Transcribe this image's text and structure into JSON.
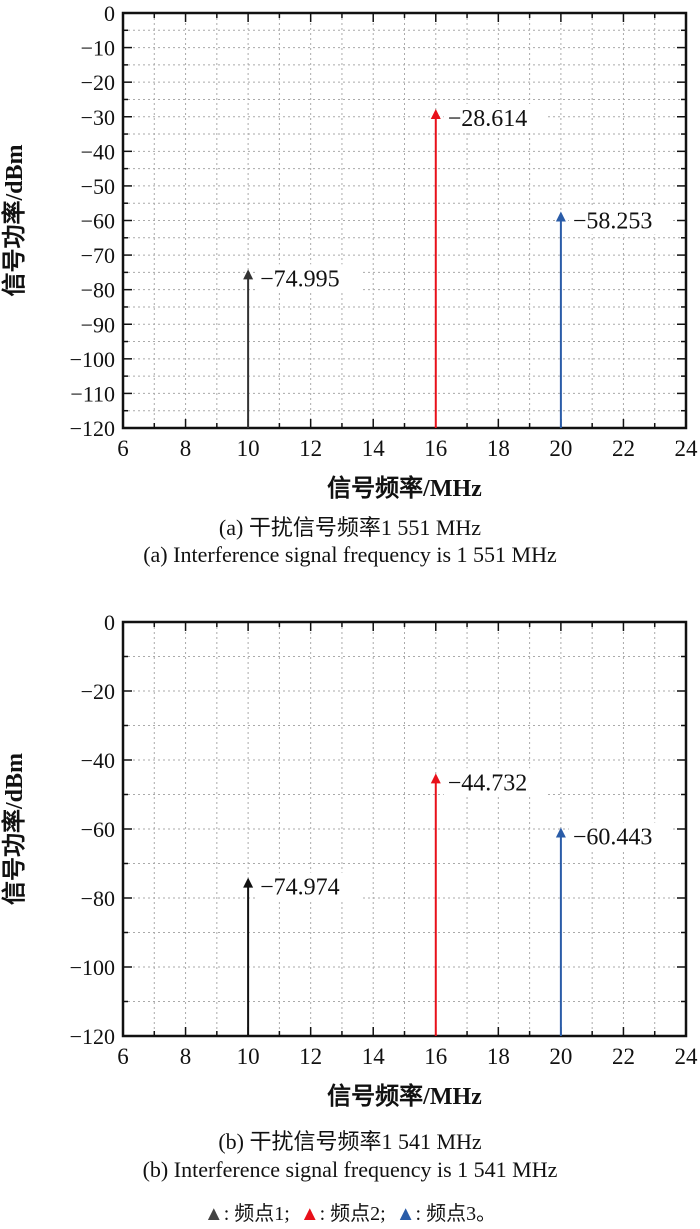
{
  "chart_data": [
    {
      "type": "bar",
      "subtype": "stem",
      "xlabel": "信号频率/MHz",
      "ylabel": "信号功率/dBm",
      "xlim": [
        6,
        24
      ],
      "ylim": [
        -120,
        0
      ],
      "xticks": [
        6,
        8,
        10,
        12,
        14,
        16,
        18,
        20,
        22,
        24
      ],
      "yticks": [
        0,
        -10,
        -20,
        -30,
        -40,
        -50,
        -60,
        -70,
        -80,
        -90,
        -100,
        -110,
        -120
      ],
      "grid": true,
      "series": [
        {
          "name": "频点1",
          "x": 10,
          "value": -74.995,
          "label": "−74.995",
          "color": "#333333"
        },
        {
          "name": "频点2",
          "x": 16,
          "value": -28.614,
          "label": "−28.614",
          "color": "#e8101a"
        },
        {
          "name": "频点3",
          "x": 20,
          "value": -58.253,
          "label": "−58.253",
          "color": "#2a5ca8"
        }
      ],
      "caption_cn": "(a) 干扰信号频率1 551 MHz",
      "caption_en": "(a) Interference signal frequency is 1 551 MHz"
    },
    {
      "type": "bar",
      "subtype": "stem",
      "xlabel": "信号频率/MHz",
      "ylabel": "信号功率/dBm",
      "xlim": [
        6,
        24
      ],
      "ylim": [
        -120,
        0
      ],
      "xticks": [
        6,
        8,
        10,
        12,
        14,
        16,
        18,
        20,
        22,
        24
      ],
      "yticks": [
        0,
        -20,
        -40,
        -60,
        -80,
        -100,
        -120
      ],
      "grid": true,
      "series": [
        {
          "name": "频点1",
          "x": 10,
          "value": -74.974,
          "label": "−74.974",
          "color": "#111111"
        },
        {
          "name": "频点2",
          "x": 16,
          "value": -44.732,
          "label": "−44.732",
          "color": "#e8101a"
        },
        {
          "name": "频点3",
          "x": 20,
          "value": -60.443,
          "label": "−60.443",
          "color": "#2a5ca8"
        }
      ],
      "caption_cn": "(b) 干扰信号频率1 541 MHz",
      "caption_en": "(b) Interference signal frequency is 1 541 MHz"
    }
  ],
  "legend": [
    {
      "marker": "▲",
      "text": ": 频点1;",
      "color": "#444444"
    },
    {
      "marker": "▲",
      "text": ": 频点2;",
      "color": "#e8101a"
    },
    {
      "marker": "▲",
      "text": ": 频点3。",
      "color": "#2a5ca8"
    }
  ]
}
